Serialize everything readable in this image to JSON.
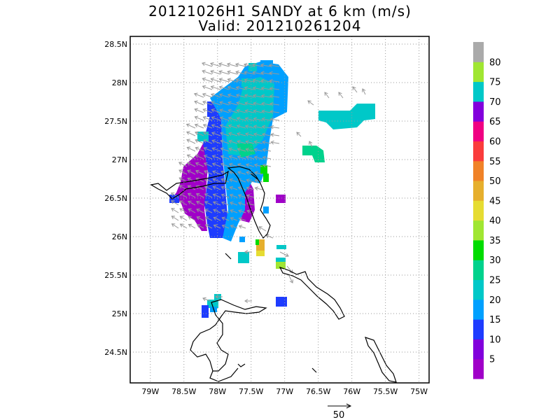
{
  "title": {
    "line1": "20121026H1 SANDY at 6 km (m/s)",
    "line2": "Valid: 201210261204"
  },
  "axes": {
    "lon_ticks": [
      "79W",
      "78.5W",
      "78W",
      "77.5W",
      "77W",
      "76.5W",
      "76W",
      "75.5W",
      "75W"
    ],
    "lon_values": [
      -79,
      -78.5,
      -78,
      -77.5,
      -77,
      -76.5,
      -76,
      -75.5,
      -75
    ],
    "lat_ticks": [
      "28.5N",
      "28N",
      "27.5N",
      "27N",
      "26.5N",
      "26N",
      "25.5N",
      "25N",
      "24.5N"
    ],
    "lat_values": [
      28.5,
      28,
      27.5,
      27,
      26.5,
      26,
      25.5,
      25,
      24.5
    ],
    "lon_range": [
      -79.3,
      -74.85
    ],
    "lat_range": [
      24.1,
      28.6
    ],
    "grid": true
  },
  "colorbar": {
    "labels": [
      "5",
      "10",
      "15",
      "20",
      "25",
      "30",
      "35",
      "40",
      "45",
      "50",
      "55",
      "60",
      "65",
      "70",
      "75",
      "80"
    ],
    "colors": [
      "#a000c8",
      "#8200dc",
      "#1e3cff",
      "#00a0ff",
      "#00c8c8",
      "#00d28c",
      "#00dc00",
      "#a0e632",
      "#e6dc32",
      "#e6af2d",
      "#f08228",
      "#fa3c3c",
      "#f00082",
      "#8200dc",
      "#00c8c8",
      "#a0e632",
      "#aaaaaa"
    ]
  },
  "reference_vector": {
    "label": "50"
  },
  "colors": {
    "purple": "#a000c8",
    "violet": "#8200dc",
    "blue": "#1e3cff",
    "lightblue": "#00a0ff",
    "cyan": "#00c8c8",
    "teal": "#00d28c",
    "green": "#00dc00",
    "lime": "#a0e632",
    "yellow": "#e6dc32",
    "orange": "#e6af2d",
    "arrow": "#999999"
  }
}
